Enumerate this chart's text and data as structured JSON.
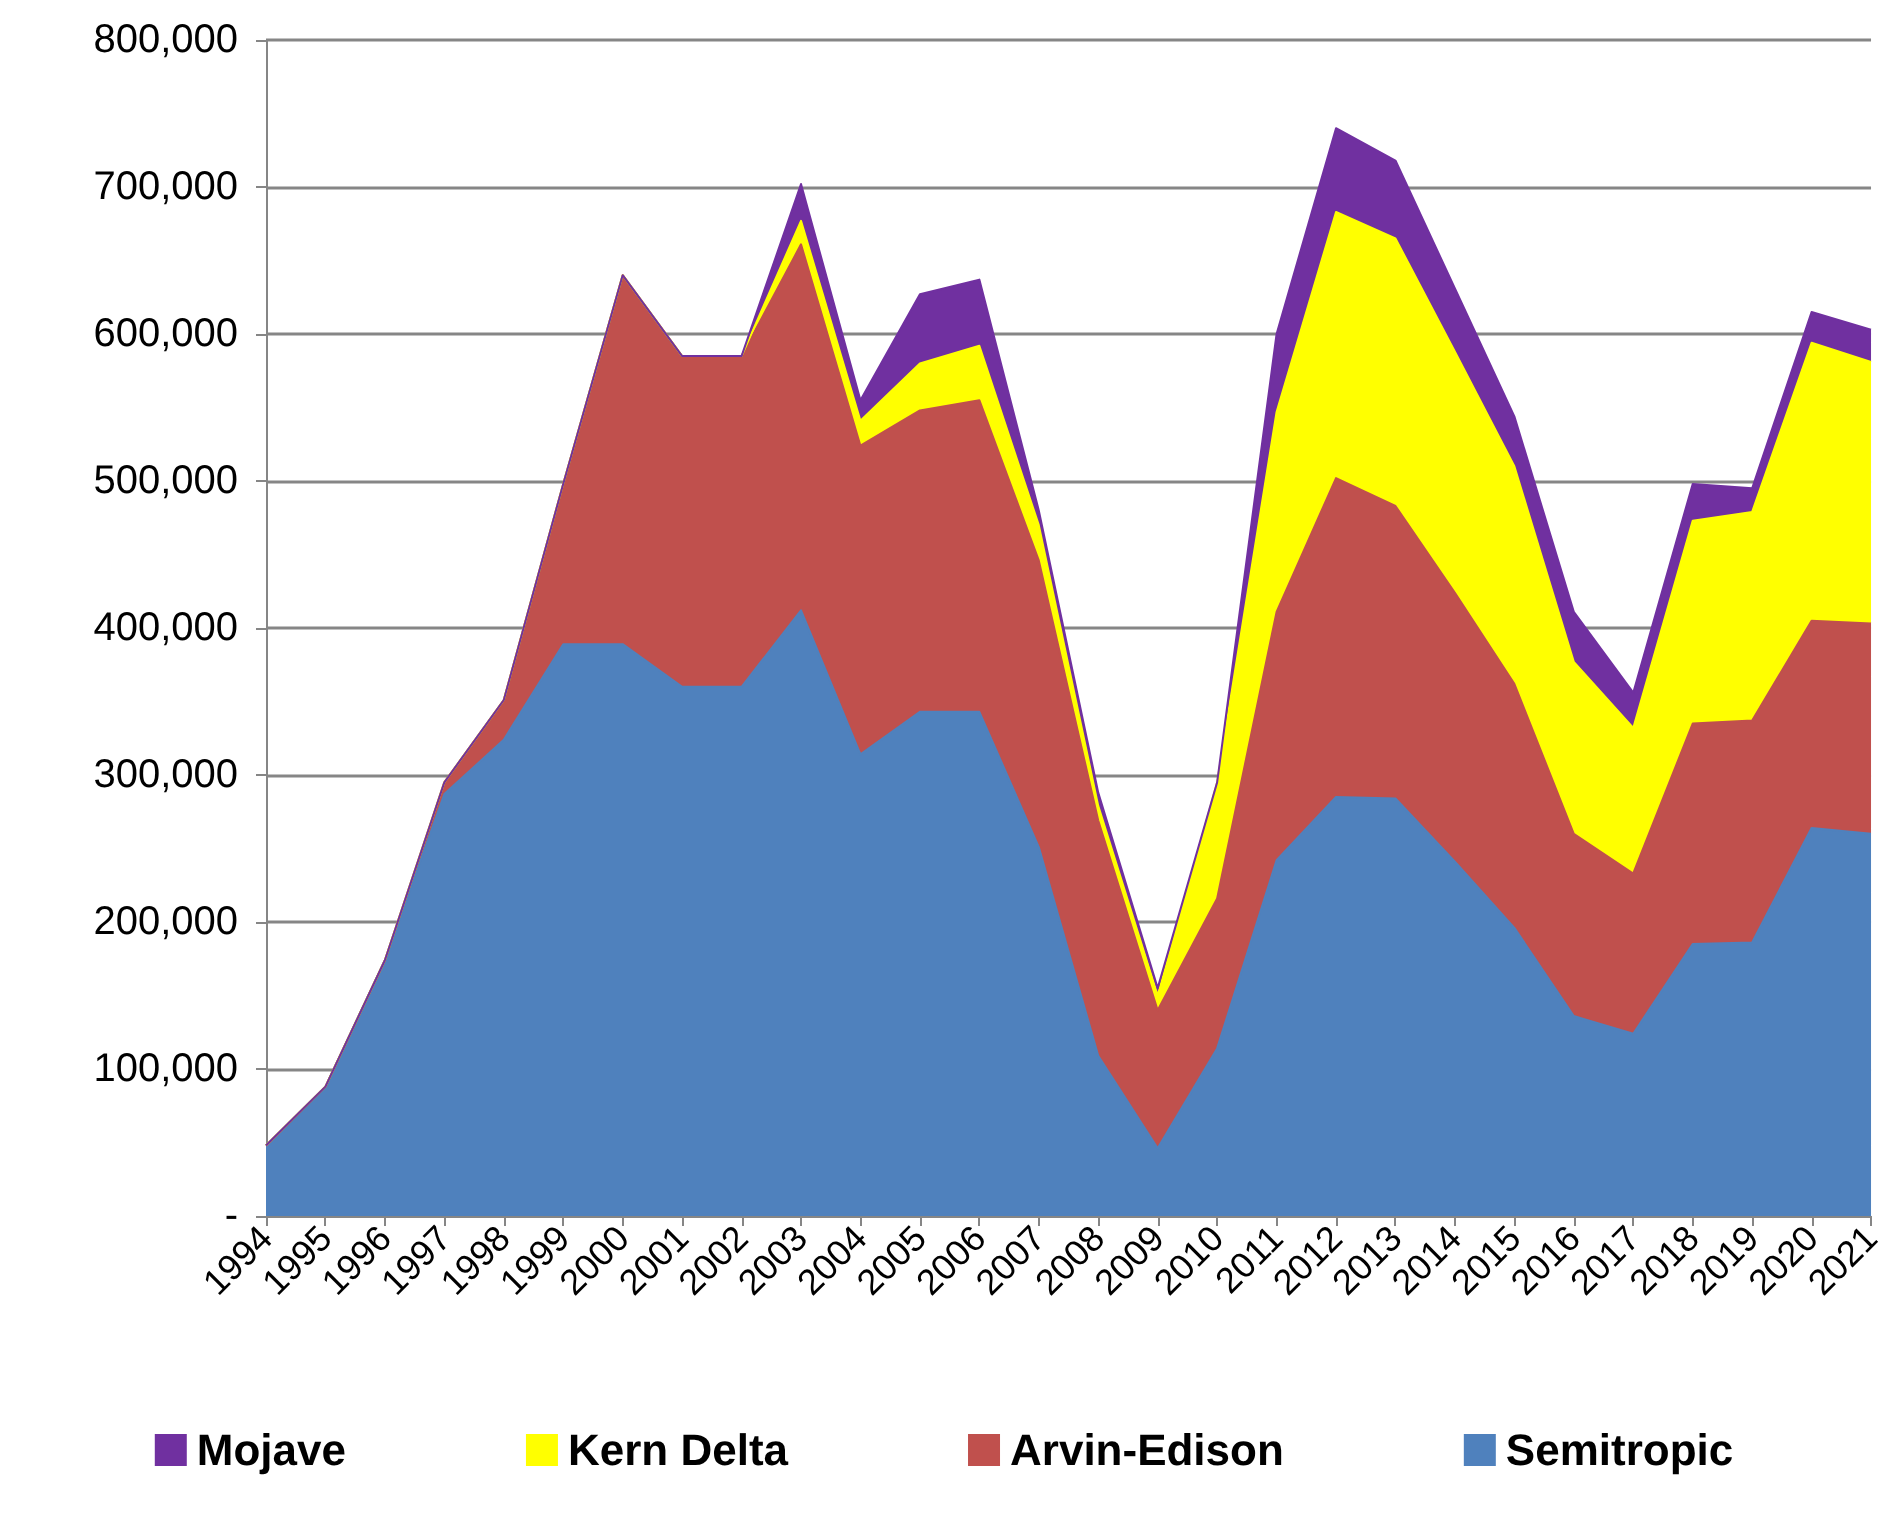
{
  "chart_data": {
    "type": "area",
    "stacked": true,
    "grid": "y",
    "legend": "bottom",
    "marker": "none",
    "categories": [
      "1994",
      "1995",
      "1996",
      "1997",
      "1998",
      "1999",
      "2000",
      "2001",
      "2002",
      "2003",
      "2004",
      "2005",
      "2006",
      "2007",
      "2008",
      "2009",
      "2010",
      "2011",
      "2012",
      "2013",
      "2014",
      "2015",
      "2016",
      "2017",
      "2018",
      "2019",
      "2020",
      "2021"
    ],
    "ylim": [
      0,
      800000
    ],
    "yticks": [
      {
        "value": 0,
        "label": "-"
      },
      {
        "value": 100000,
        "label": "100,000"
      },
      {
        "value": 200000,
        "label": "200,000"
      },
      {
        "value": 300000,
        "label": "300,000"
      },
      {
        "value": 400000,
        "label": "400,000"
      },
      {
        "value": 500000,
        "label": "500,000"
      },
      {
        "value": 600000,
        "label": "600,000"
      },
      {
        "value": 700000,
        "label": "700,000"
      },
      {
        "value": 800000,
        "label": "800,000"
      }
    ],
    "series": [
      {
        "name": "Semitropic",
        "color": "#4f81bd",
        "values": [
          48000,
          88000,
          174000,
          287000,
          324000,
          389000,
          389000,
          360000,
          360000,
          412000,
          314000,
          343000,
          343000,
          251000,
          109000,
          46000,
          114000,
          242000,
          285000,
          284000,
          241000,
          196000,
          136000,
          124000,
          185000,
          186000,
          264000,
          260000
        ]
      },
      {
        "name": "Arvin-Edison",
        "color": "#c0504d",
        "values": [
          0,
          0,
          0,
          8000,
          27000,
          109000,
          251000,
          225000,
          225000,
          249000,
          210000,
          205000,
          212000,
          195000,
          160000,
          94000,
          102000,
          169000,
          217000,
          199000,
          183000,
          166000,
          124000,
          109000,
          150000,
          151000,
          141000,
          143000
        ]
      },
      {
        "name": "Kern Delta",
        "color": "#ffff00",
        "values": [
          0,
          0,
          0,
          0,
          0,
          0,
          0,
          0,
          0,
          16000,
          17000,
          32000,
          37000,
          24000,
          10000,
          10000,
          79000,
          136000,
          181000,
          182000,
          164000,
          148000,
          117000,
          99000,
          138000,
          142000,
          189000,
          178000
        ]
      },
      {
        "name": "Mojave",
        "color": "#7030a0",
        "values": [
          0,
          0,
          0,
          0,
          0,
          0,
          0,
          0,
          0,
          25000,
          14000,
          47000,
          45000,
          10000,
          9000,
          5000,
          0,
          53000,
          57000,
          53000,
          43000,
          34000,
          34000,
          24000,
          25000,
          16000,
          21000,
          22000
        ]
      }
    ]
  }
}
